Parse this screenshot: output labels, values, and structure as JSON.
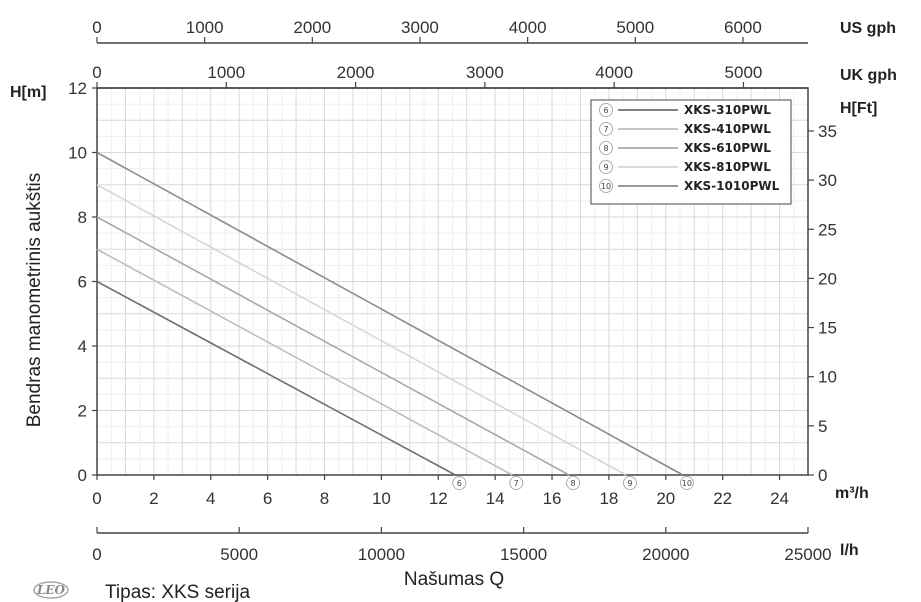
{
  "chart_data": {
    "type": "line",
    "ylabel": "Bendras manometrinis aukštis",
    "xlabel": "Našumas Q",
    "left_axis_unit": "H[m]",
    "right_axis_unit": "H[Ft]",
    "bottom_axis_unit": "m³/h",
    "flow_axis_unit": "l/h",
    "top_axis_unit": "US gph",
    "top2_axis_unit": "UK gph",
    "xlim": [
      0,
      25
    ],
    "ylim": [
      0,
      12
    ],
    "grid": true,
    "legend_position": "top-right",
    "x_ticks": [
      0,
      2,
      4,
      6,
      8,
      10,
      12,
      14,
      16,
      18,
      20,
      22,
      24
    ],
    "y_ticks": [
      0,
      2,
      4,
      6,
      8,
      10,
      12
    ],
    "ft_ticks": [
      0,
      5,
      10,
      15,
      20,
      25,
      30,
      35
    ],
    "lh_ticks": [
      0,
      5000,
      10000,
      15000,
      20000,
      25000
    ],
    "usgph_ticks": [
      0,
      1000,
      2000,
      3000,
      4000,
      5000,
      6000
    ],
    "ukgph_ticks": [
      0,
      1000,
      2000,
      3000,
      4000,
      5000
    ],
    "series": [
      {
        "name": "XKS-310PWL",
        "marker": "6",
        "color": "#6f6f6f",
        "x": [
          0,
          12.6
        ],
        "y": [
          6,
          0
        ]
      },
      {
        "name": "XKS-410PWL",
        "marker": "7",
        "color": "#bdbdbd",
        "x": [
          0,
          14.6
        ],
        "y": [
          7,
          0
        ]
      },
      {
        "name": "XKS-610PWL",
        "marker": "8",
        "color": "#a9a9a9",
        "x": [
          0,
          16.6
        ],
        "y": [
          8,
          0
        ]
      },
      {
        "name": "XKS-810PWL",
        "marker": "9",
        "color": "#d6d6d6",
        "x": [
          0,
          18.6
        ],
        "y": [
          9,
          0
        ]
      },
      {
        "name": "XKS-1010PWL",
        "marker": "10",
        "color": "#8c8c8c",
        "x": [
          0,
          20.6
        ],
        "y": [
          10,
          0
        ]
      }
    ]
  },
  "footer": {
    "logo": "LEO",
    "caption": "Tipas: XKS serija"
  }
}
